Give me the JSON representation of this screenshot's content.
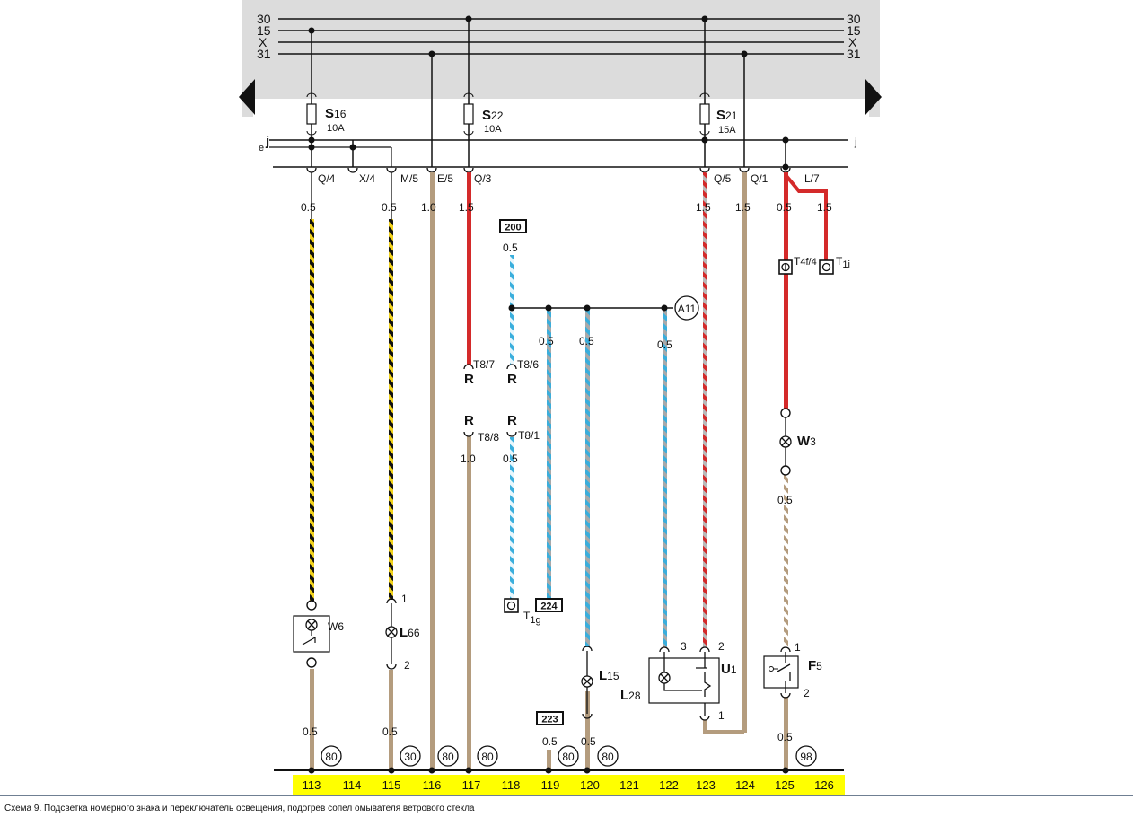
{
  "caption": "Схема 9. Подсветка номерного знака и переключатель освещения, подогрев сопел омывателя ветрового стекла",
  "bus_lines": [
    {
      "left": "30",
      "right": "30"
    },
    {
      "left": "15",
      "right": "15"
    },
    {
      "left": "X",
      "right": "X"
    },
    {
      "left": "31",
      "right": "31"
    }
  ],
  "fuses": [
    {
      "id": "s16",
      "name": "S",
      "sub": "16",
      "rating": "10A"
    },
    {
      "id": "s22",
      "name": "S",
      "sub": "22",
      "rating": "10A"
    },
    {
      "id": "s21",
      "name": "S",
      "sub": "21",
      "rating": "15A"
    }
  ],
  "j_line": {
    "left_prefix": "e",
    "left": "j",
    "right": "j"
  },
  "connectors": [
    "Q/4",
    "X/4",
    "M/5",
    "E/5",
    "Q/3",
    "Q/5",
    "Q/1",
    "L/7"
  ],
  "wire_sizes": {
    "w113_top": "0.5",
    "w115_top": "0.5",
    "w116_top": "1.0",
    "w117_top": "1.5",
    "w200": "0.5",
    "w119": "0.5",
    "w120": "0.5",
    "w122": "0.5",
    "w123": "1.5",
    "w124": "1.5",
    "w125": "0.5",
    "w126": "1.5",
    "w117_low": "1.0",
    "w118_low": "0.5",
    "w125_low": "0.5",
    "b113": "0.5",
    "b115": "0.5",
    "b119": "0.5",
    "b120": "0.5",
    "b125": "0.5"
  },
  "ref_boxes": {
    "r200": "200",
    "r224": "224",
    "r223": "223"
  },
  "plugs": {
    "t87": "T8/7",
    "t86": "T8/6",
    "t88": "T8/8",
    "t81": "T8/1",
    "r": "R"
  },
  "terminals": {
    "t4f": {
      "base": "T",
      "sub": "4f/4"
    },
    "t1i": {
      "base": "T",
      "sub": "1i"
    },
    "t1g": {
      "base": "T",
      "sub": "1g"
    }
  },
  "components": {
    "w6": {
      "name": "W",
      "sub": "6"
    },
    "l66": {
      "name": "L",
      "sub": "66",
      "pin_top": "1",
      "pin_bottom": "2"
    },
    "l15": {
      "name": "L",
      "sub": "15"
    },
    "l28": {
      "name": "L",
      "sub": "28"
    },
    "u1": {
      "name": "U",
      "sub": "1",
      "pin_left": "3",
      "pin_right": "2",
      "pin_bottom": "1"
    },
    "w3": {
      "name": "W",
      "sub": "3"
    },
    "f5": {
      "name": "F",
      "sub": "5",
      "pin_top": "1",
      "pin_bottom": "2"
    },
    "a11": "A11"
  },
  "ground_refs": [
    {
      "id": "g113",
      "label": "80"
    },
    {
      "id": "g115",
      "label": "30"
    },
    {
      "id": "g116",
      "label": "80"
    },
    {
      "id": "g117",
      "label": "80"
    },
    {
      "id": "g119",
      "label": "80"
    },
    {
      "id": "g120",
      "label": "80"
    },
    {
      "id": "g125",
      "label": "98"
    }
  ],
  "ruler": [
    "113",
    "114",
    "115",
    "116",
    "117",
    "118",
    "119",
    "120",
    "121",
    "122",
    "123",
    "124",
    "125",
    "126"
  ],
  "colors": {
    "panel": "#dcdcdc",
    "red": "#d42a2a",
    "brown": "#b49c7e",
    "black": "#111111",
    "yellow": "#f2d21b",
    "blue": "#3aaedc",
    "grey": "#a8a8a8",
    "ruler": "#ffff00"
  }
}
